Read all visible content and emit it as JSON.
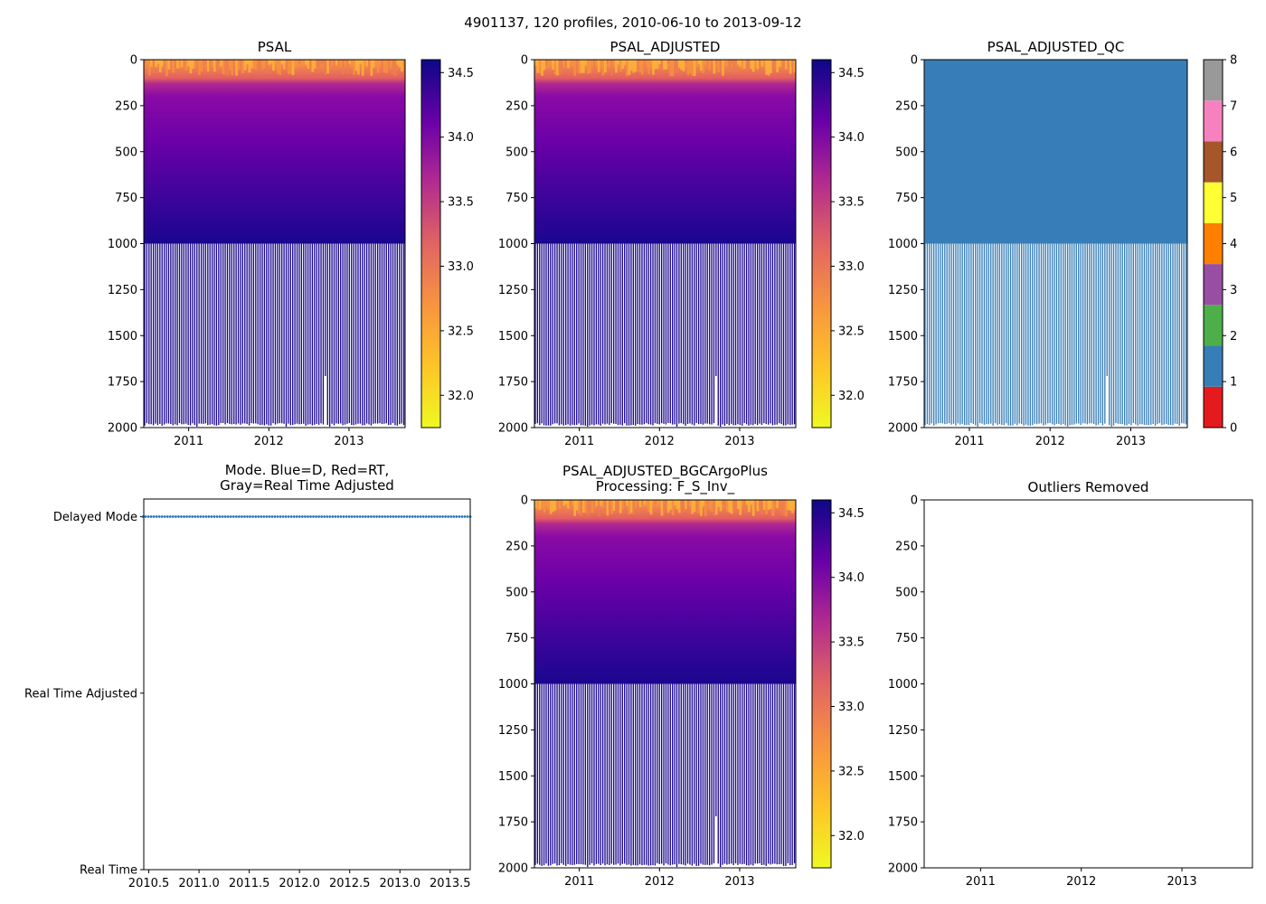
{
  "suptitle": "4901137, 120 profiles, 2010-06-10 to 2013-09-12",
  "colors": {
    "bar_blue": "#377eb8",
    "mode_dot": "#1f77b4",
    "plasma": [
      "#f0f921",
      "#fdc328",
      "#f89540",
      "#e16462",
      "#b12a90",
      "#6a00a8",
      "#0d0887"
    ],
    "qc_classes": [
      "#e41a1c",
      "#377eb8",
      "#4daf4a",
      "#984ea3",
      "#ff7f00",
      "#ffff33",
      "#a65628",
      "#f781bf",
      "#999999"
    ]
  },
  "chart_data": [
    {
      "id": "psal",
      "type": "heatmap",
      "title": "PSAL",
      "x_range": [
        2010.44,
        2013.7
      ],
      "x_ticks": [
        "2011",
        "2012",
        "2013"
      ],
      "x_tick_values": [
        2011,
        2012,
        2013
      ],
      "y_range": [
        0,
        2000
      ],
      "y_inverted": true,
      "y_ticks": [
        "0",
        "250",
        "500",
        "750",
        "1000",
        "1250",
        "1500",
        "1750",
        "2000"
      ],
      "y_tick_values": [
        0,
        250,
        500,
        750,
        1000,
        1250,
        1500,
        1750,
        2000
      ],
      "n_profiles": 120,
      "surface_layer_depth": 150,
      "continuous_depth": 1000,
      "max_depth": 2000,
      "colorbar": {
        "range": [
          31.75,
          34.6
        ],
        "ticks": [
          "32.0",
          "32.5",
          "33.0",
          "33.5",
          "34.0",
          "34.5"
        ],
        "tick_values": [
          32.0,
          32.5,
          33.0,
          33.5,
          34.0,
          34.5
        ]
      }
    },
    {
      "id": "psal_adjusted",
      "type": "heatmap",
      "title": "PSAL_ADJUSTED",
      "x_range": [
        2010.44,
        2013.7
      ],
      "x_ticks": [
        "2011",
        "2012",
        "2013"
      ],
      "x_tick_values": [
        2011,
        2012,
        2013
      ],
      "y_range": [
        0,
        2000
      ],
      "y_inverted": true,
      "y_ticks": [
        "0",
        "250",
        "500",
        "750",
        "1000",
        "1250",
        "1500",
        "1750",
        "2000"
      ],
      "y_tick_values": [
        0,
        250,
        500,
        750,
        1000,
        1250,
        1500,
        1750,
        2000
      ],
      "n_profiles": 120,
      "colorbar": {
        "range": [
          31.75,
          34.6
        ],
        "ticks": [
          "32.0",
          "32.5",
          "33.0",
          "33.5",
          "34.0",
          "34.5"
        ],
        "tick_values": [
          32.0,
          32.5,
          33.0,
          33.5,
          34.0,
          34.5
        ]
      }
    },
    {
      "id": "psal_adjusted_qc",
      "type": "heatmap",
      "title": "PSAL_ADJUSTED_QC",
      "x_range": [
        2010.44,
        2013.7
      ],
      "x_ticks": [
        "2011",
        "2012",
        "2013"
      ],
      "x_tick_values": [
        2011,
        2012,
        2013
      ],
      "y_range": [
        0,
        2000
      ],
      "y_inverted": true,
      "y_ticks": [
        "0",
        "250",
        "500",
        "750",
        "1000",
        "1250",
        "1500",
        "1750",
        "2000"
      ],
      "y_tick_values": [
        0,
        250,
        500,
        750,
        1000,
        1250,
        1500,
        1750,
        2000
      ],
      "n_profiles": 120,
      "qc_value": 1,
      "colorbar": {
        "range": [
          0,
          8
        ],
        "ticks": [
          "0",
          "1",
          "2",
          "3",
          "4",
          "5",
          "6",
          "7",
          "8"
        ],
        "tick_values": [
          0,
          1,
          2,
          3,
          4,
          5,
          6,
          7,
          8
        ]
      }
    },
    {
      "id": "mode",
      "type": "scatter",
      "title_lines": [
        "Mode. Blue=D, Red=RT,",
        "Gray=Real Time Adjusted"
      ],
      "x_range": [
        2010.45,
        2013.7
      ],
      "x_ticks": [
        "2010.5",
        "2011.0",
        "2011.5",
        "2012.0",
        "2012.5",
        "2013.0",
        "2013.5"
      ],
      "x_tick_values": [
        2010.5,
        2011.0,
        2011.5,
        2012.0,
        2012.5,
        2013.0,
        2013.5
      ],
      "y_categories": [
        "Real Time",
        "Real Time Adjusted",
        "Delayed Mode"
      ],
      "y_range": [
        0,
        2.1
      ],
      "n_points": 120,
      "point_category": "Delayed Mode",
      "point_y_value": 2,
      "x_start": 2010.44,
      "x_end": 2013.7
    },
    {
      "id": "bgc",
      "type": "heatmap",
      "title_lines": [
        "PSAL_ADJUSTED_BGCArgoPlus",
        "Processing: F_S_Inv_"
      ],
      "x_range": [
        2010.44,
        2013.7
      ],
      "x_ticks": [
        "2011",
        "2012",
        "2013"
      ],
      "x_tick_values": [
        2011,
        2012,
        2013
      ],
      "y_range": [
        0,
        2000
      ],
      "y_inverted": true,
      "y_ticks": [
        "0",
        "250",
        "500",
        "750",
        "1000",
        "1250",
        "1500",
        "1750",
        "2000"
      ],
      "y_tick_values": [
        0,
        250,
        500,
        750,
        1000,
        1250,
        1500,
        1750,
        2000
      ],
      "n_profiles": 120,
      "colorbar": {
        "range": [
          31.75,
          34.6
        ],
        "ticks": [
          "32.0",
          "32.5",
          "33.0",
          "33.5",
          "34.0",
          "34.5"
        ],
        "tick_values": [
          32.0,
          32.5,
          33.0,
          33.5,
          34.0,
          34.5
        ]
      }
    },
    {
      "id": "outliers",
      "type": "scatter",
      "title": "Outliers Removed",
      "x_range": [
        2010.44,
        2013.7
      ],
      "x_ticks": [
        "2011",
        "2012",
        "2013"
      ],
      "x_tick_values": [
        2011,
        2012,
        2013
      ],
      "y_range": [
        0,
        2000
      ],
      "y_inverted": true,
      "y_ticks": [
        "0",
        "250",
        "500",
        "750",
        "1000",
        "1250",
        "1500",
        "1750",
        "2000"
      ],
      "y_tick_values": [
        0,
        250,
        500,
        750,
        1000,
        1250,
        1500,
        1750,
        2000
      ],
      "points": []
    }
  ]
}
